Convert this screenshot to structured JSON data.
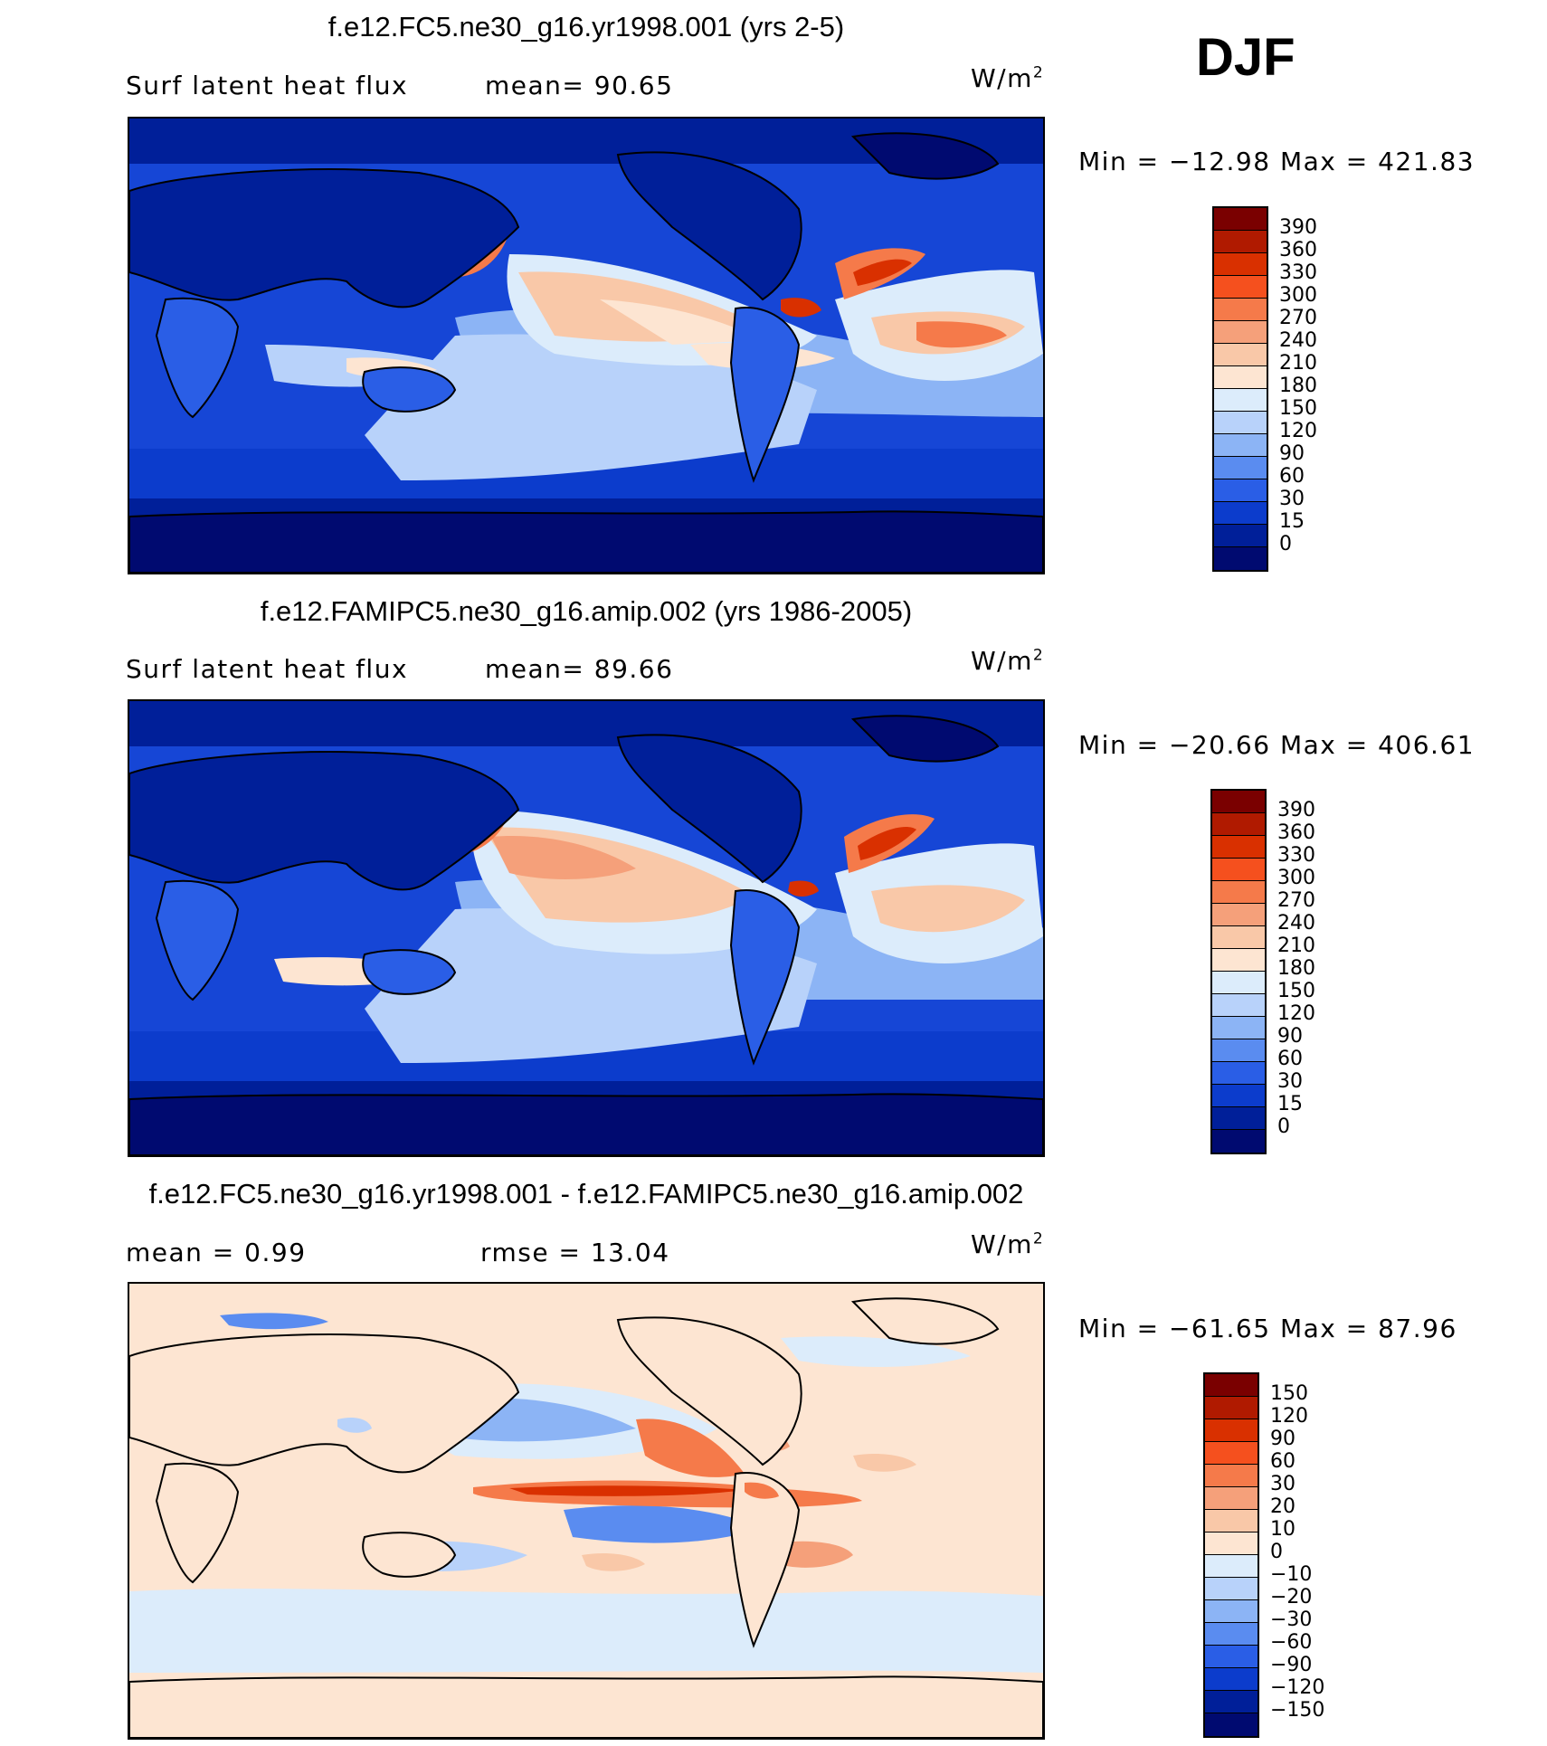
{
  "season": "DJF",
  "units": "W/m",
  "units_exp": "2",
  "colorbar_levels": [
    "390",
    "360",
    "330",
    "300",
    "270",
    "240",
    "210",
    "180",
    "150",
    "120",
    "90",
    "60",
    "30",
    "15",
    "0"
  ],
  "diff_levels": [
    "150",
    "120",
    "90",
    "60",
    "30",
    "20",
    "10",
    "0",
    "−10",
    "−20",
    "−30",
    "−60",
    "−90",
    "−120",
    "−150"
  ],
  "colors": {
    "main_scale": [
      "#7a0000",
      "#b01a00",
      "#d93000",
      "#f5501e",
      "#f57a4a",
      "#f5a07a",
      "#f9c8a8",
      "#fde5d2",
      "#dcecfb",
      "#b8d2fa",
      "#8cb4f5",
      "#5a8cf0",
      "#2a5ee6",
      "#0c3ccc",
      "#001f99",
      "#000a70"
    ],
    "diff_scale": [
      "#7a0000",
      "#b01a00",
      "#d93000",
      "#f5501e",
      "#f57a4a",
      "#f5a07a",
      "#f9c8a8",
      "#fde5d2",
      "#dcecfb",
      "#b8d2fa",
      "#8cb4f5",
      "#5a8cf0",
      "#2a5ee6",
      "#0c3ccc",
      "#001f99",
      "#000a70"
    ]
  },
  "panels": [
    {
      "title": "f.e12.FC5.ne30_g16.yr1998.001 (yrs 2-5)",
      "label_left": "Surf  latent  heat  flux",
      "label_mid": "mean=   90.65",
      "minmax": "Min  =  −12.98  Max  =  421.83"
    },
    {
      "title": "f.e12.FAMIPC5.ne30_g16.amip.002 (yrs 1986-2005)",
      "label_left": "Surf  latent  heat  flux",
      "label_mid": "mean=   89.66",
      "minmax": "Min  =  −20.66  Max  =  406.61"
    },
    {
      "title": "f.e12.FC5.ne30_g16.yr1998.001 - f.e12.FAMIPC5.ne30_g16.amip.002",
      "label_left": "mean  =     0.99",
      "label_mid": "rmse  =    13.04",
      "minmax": "Min  =  −61.65  Max  =    87.96"
    }
  ]
}
